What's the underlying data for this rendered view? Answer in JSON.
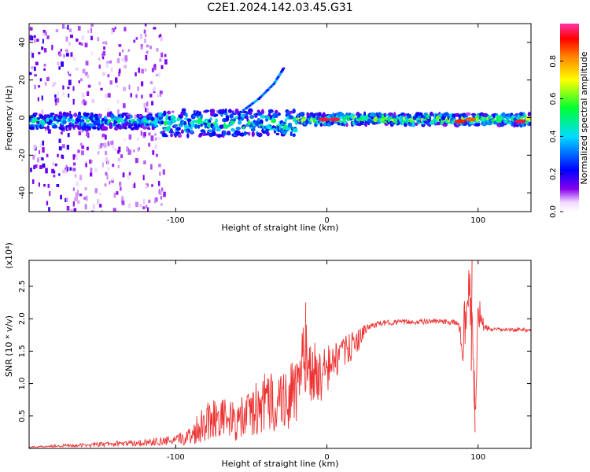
{
  "title": "C2E1.2024.142.03.45.G31",
  "chart_data": [
    {
      "type": "heatmap",
      "xlabel": "Height of straight line (km)",
      "ylabel": "Frequency (Hz)",
      "xlim": [
        -197,
        135
      ],
      "ylim": [
        -50,
        50
      ],
      "x_ticks": [
        -100,
        0,
        100
      ],
      "x_tick_labels": [
        "-100",
        "0",
        "100"
      ],
      "y_ticks": [
        -40,
        -20,
        0,
        20,
        40
      ],
      "y_tick_labels": [
        "-40",
        "-20",
        "0",
        "20",
        "40"
      ],
      "colorbar": {
        "label": "Normalized spectral amplitude",
        "range": [
          0.0,
          1.0
        ],
        "ticks": [
          0.0,
          0.2,
          0.4,
          0.6,
          0.8
        ],
        "tick_labels": [
          "0.0",
          "0.2",
          "0.4",
          "0.6",
          "0.8"
        ],
        "colormap": "rainbow-white"
      },
      "bands": [
        {
          "x0": -197,
          "x1": -110,
          "center": -2,
          "halfwidth": 4,
          "amp": 0.45
        },
        {
          "x0": -110,
          "x1": -20,
          "center": -3,
          "halfwidth": 7,
          "amp": 0.5
        },
        {
          "x0": -20,
          "x1": 135,
          "center": -1,
          "halfwidth": 3,
          "amp": 0.6
        }
      ],
      "hotspots": [
        {
          "x": -2,
          "y": -1,
          "amp": 0.95
        },
        {
          "x": 5,
          "y": -1,
          "amp": 0.95
        },
        {
          "x": 88,
          "y": -2,
          "amp": 0.9
        },
        {
          "x": 95,
          "y": -1,
          "amp": 0.85
        },
        {
          "x": 128,
          "y": -2,
          "amp": 0.95
        }
      ],
      "trails": [
        {
          "x": [
            -55,
            -45,
            -35,
            -28
          ],
          "y": [
            4,
            10,
            18,
            27
          ],
          "amp": 0.35
        }
      ]
    },
    {
      "type": "line",
      "xlabel": "Height of straight line (km)",
      "ylabel": "SNR (10 * v/v)",
      "y_multiplier": "(x10⁴)",
      "xlim": [
        -197,
        135
      ],
      "ylim": [
        0,
        2.9
      ],
      "x_ticks": [
        -100,
        0,
        100
      ],
      "x_tick_labels": [
        "-100",
        "0",
        "100"
      ],
      "y_ticks": [
        0.5,
        1.0,
        1.5,
        2.0,
        2.5
      ],
      "y_tick_labels": [
        "0.5",
        "1.0",
        "1.5",
        "2.0",
        "2.5"
      ],
      "series": [
        {
          "color": "#ee3333",
          "x": [
            -197,
            -180,
            -160,
            -140,
            -120,
            -100,
            -90,
            -80,
            -70,
            -60,
            -50,
            -40,
            -30,
            -20,
            -15,
            -10,
            -5,
            0,
            5,
            10,
            20,
            25,
            30,
            40,
            50,
            60,
            70,
            80,
            87,
            90,
            93,
            96,
            98,
            100,
            102,
            105,
            110,
            120,
            130,
            135
          ],
          "values": [
            0.02,
            0.04,
            0.05,
            0.07,
            0.09,
            0.12,
            0.2,
            0.45,
            0.5,
            0.4,
            0.55,
            0.7,
            0.75,
            0.85,
            1.4,
            1.2,
            1.1,
            1.2,
            1.35,
            1.45,
            1.65,
            1.82,
            1.9,
            1.94,
            1.95,
            1.95,
            1.96,
            1.95,
            1.93,
            1.6,
            2.5,
            2.0,
            0.3,
            2.2,
            1.95,
            1.86,
            1.83,
            1.83,
            1.83,
            1.83
          ],
          "noise": [
            0.01,
            0.02,
            0.03,
            0.04,
            0.05,
            0.08,
            0.15,
            0.35,
            0.3,
            0.3,
            0.4,
            0.5,
            0.5,
            0.55,
            0.6,
            0.5,
            0.45,
            0.4,
            0.3,
            0.25,
            0.2,
            0.08,
            0.05,
            0.04,
            0.04,
            0.04,
            0.04,
            0.04,
            0.05,
            0.4,
            0.45,
            0.5,
            0.45,
            0.4,
            0.15,
            0.05,
            0.03,
            0.03,
            0.03,
            0.03
          ]
        }
      ],
      "peaks": [
        {
          "x": -14,
          "y": 2.25
        },
        {
          "x": 96,
          "y": 2.9
        },
        {
          "x": 98,
          "y": 0.25
        }
      ]
    }
  ]
}
